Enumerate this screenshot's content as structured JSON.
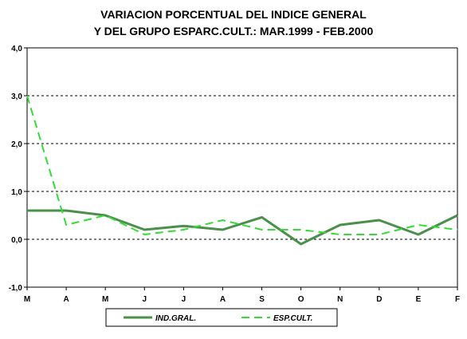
{
  "chart_data": {
    "type": "line",
    "title": "VARIACION PORCENTUAL DEL INDICE GENERAL",
    "subtitle": "Y DEL GRUPO ESPARC.CULT.: MAR.1999 - FEB.2000",
    "categories": [
      "M",
      "A",
      "M",
      "J",
      "J",
      "A",
      "S",
      "O",
      "N",
      "D",
      "E",
      "F"
    ],
    "yticks": [
      "-1,0",
      "0,0",
      "1,0",
      "2,0",
      "3,0",
      "4,0"
    ],
    "ylim": [
      -1,
      4
    ],
    "grid": "dashed horizontal",
    "legend_position": "bottom",
    "series": [
      {
        "name": "IND.GRAL.",
        "color": "#4a8f4a",
        "style": "solid",
        "values": [
          0.6,
          0.6,
          0.5,
          0.2,
          0.28,
          0.2,
          0.46,
          -0.1,
          0.3,
          0.4,
          0.1,
          0.5
        ]
      },
      {
        "name": "ESP.CULT.",
        "color": "#33dd33",
        "style": "dashed",
        "values": [
          3.0,
          0.3,
          0.5,
          0.1,
          0.2,
          0.4,
          0.2,
          0.2,
          0.1,
          0.1,
          0.3,
          0.2
        ]
      }
    ]
  }
}
